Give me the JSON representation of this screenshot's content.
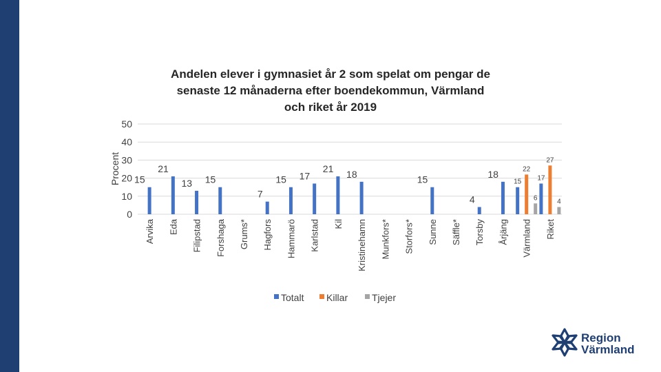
{
  "colors": {
    "sidebar": "#1f3f73",
    "totalt": "#4472c4",
    "killar": "#ed7d31",
    "tjejer": "#a5a5a5",
    "grid": "#d9d9d9",
    "text": "#404040"
  },
  "logo": {
    "line1": "Region",
    "line2": "Värmland"
  },
  "chart_data": {
    "type": "bar",
    "title": "Andelen elever i gymnasiet år 2 som spelat om pengar de senaste 12 månaderna efter boendekommun, Värmland och riket år 2019",
    "title_lines": [
      "Andelen elever i gymnasiet år 2 som spelat om pengar de",
      "senaste 12 månaderna efter boendekommun, Värmland",
      "och riket år 2019"
    ],
    "ylabel": "Procent",
    "xlabel": "",
    "ylim": [
      0,
      50
    ],
    "yticks": [
      0,
      10,
      20,
      30,
      40,
      50
    ],
    "grid": true,
    "legend_position": "bottom",
    "categories": [
      "Arvika",
      "Eda",
      "Filipstad",
      "Forshaga",
      "Grums*",
      "Hagfors",
      "Hammarö",
      "Karlstad",
      "Kil",
      "Kristinehamn",
      "Munkfors*",
      "Storfors*",
      "Sunne",
      "Säffle*",
      "Torsby",
      "Årjäng",
      "Värmland",
      "Riket"
    ],
    "series": [
      {
        "name": "Totalt",
        "values": [
          15,
          21,
          13,
          15,
          null,
          7,
          15,
          17,
          21,
          18,
          null,
          null,
          15,
          null,
          4,
          18,
          15,
          17
        ]
      },
      {
        "name": "Killar",
        "values": [
          null,
          null,
          null,
          null,
          null,
          null,
          null,
          null,
          null,
          null,
          null,
          null,
          null,
          null,
          null,
          null,
          22,
          27
        ]
      },
      {
        "name": "Tjejer",
        "values": [
          null,
          null,
          null,
          null,
          null,
          null,
          null,
          null,
          null,
          null,
          null,
          null,
          null,
          null,
          null,
          null,
          6,
          4
        ]
      }
    ]
  }
}
